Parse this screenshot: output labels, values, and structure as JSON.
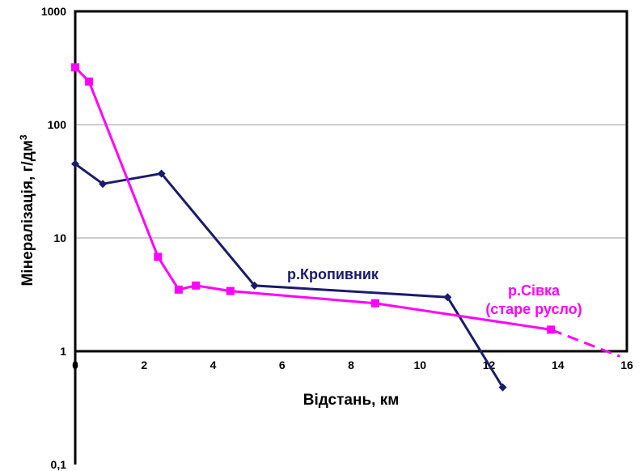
{
  "chart_data": {
    "type": "line",
    "xlabel": "Відстань, км",
    "ylabel": "Мінералізація, г/дм",
    "ylabel_sup": "3",
    "yscale": "log",
    "xlim": [
      0,
      16
    ],
    "ylim": [
      0.1,
      1000
    ],
    "grid": "horizontal",
    "x_ticks": [
      "0",
      "2",
      "4",
      "6",
      "8",
      "10",
      "12",
      "14",
      "16"
    ],
    "y_ticks": [
      {
        "value": 1000,
        "label": "1000"
      },
      {
        "value": 100,
        "label": "100"
      },
      {
        "value": 10,
        "label": "10"
      },
      {
        "value": 1,
        "label": "1"
      },
      {
        "value": 0.1,
        "label": "0,1"
      }
    ],
    "colors": {
      "kropyvnyk": "#1a1a6e",
      "sivka": "#ff00ff",
      "grid": "#999999"
    },
    "series": [
      {
        "key": "kropyvnyk",
        "name": "р.Кропивник",
        "label_lines": [
          "р.Кропивник"
        ],
        "color": "#1a1a6e",
        "marker": "diamond",
        "points": [
          [
            0,
            45
          ],
          [
            0.8,
            30
          ],
          [
            2.5,
            37
          ],
          [
            5.2,
            3.8
          ],
          [
            10.8,
            3.0
          ],
          [
            12.4,
            0.48
          ]
        ]
      },
      {
        "key": "sivka",
        "name": "р.Сівка (старе русло)",
        "label_lines": [
          "р.Сівка",
          "(старе русло)"
        ],
        "color": "#ff00ff",
        "marker": "square",
        "points": [
          [
            0,
            320
          ],
          [
            0.4,
            240
          ],
          [
            2.4,
            6.8
          ],
          [
            3.0,
            3.5
          ],
          [
            3.5,
            3.8
          ],
          [
            4.5,
            3.4
          ],
          [
            8.7,
            2.65
          ],
          [
            13.8,
            1.55
          ]
        ],
        "dashed_extension": [
          [
            13.8,
            1.55
          ],
          [
            15.8,
            0.9
          ]
        ]
      }
    ]
  }
}
